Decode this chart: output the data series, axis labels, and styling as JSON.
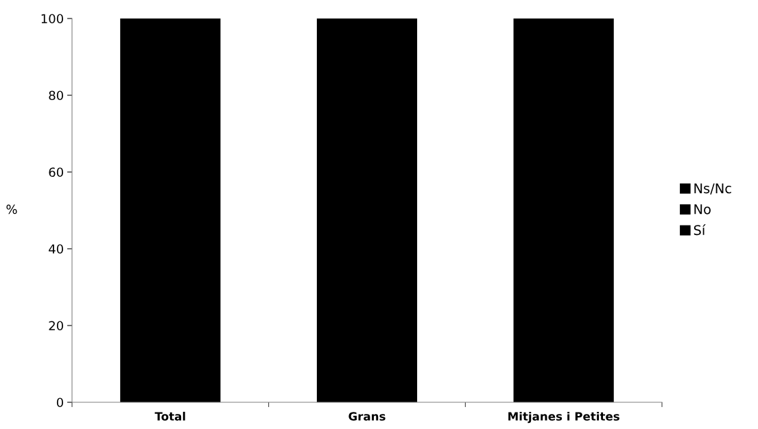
{
  "chart_data": {
    "type": "bar",
    "stacked": true,
    "ylabel": "%",
    "categories": [
      "Total",
      "Grans",
      "Mitjanes i Petites"
    ],
    "series": [
      {
        "name": "Sí",
        "color": "#000000",
        "values": [
          100,
          100,
          100
        ]
      },
      {
        "name": "No",
        "color": "#000000",
        "values": [
          null,
          null,
          null
        ]
      },
      {
        "name": "Ns/Nc",
        "color": "#000000",
        "values": [
          null,
          null,
          null
        ]
      }
    ],
    "ylim": [
      0,
      100
    ],
    "yticks": [
      0,
      20,
      40,
      60,
      80,
      100
    ],
    "grid": false,
    "legend": "right"
  }
}
